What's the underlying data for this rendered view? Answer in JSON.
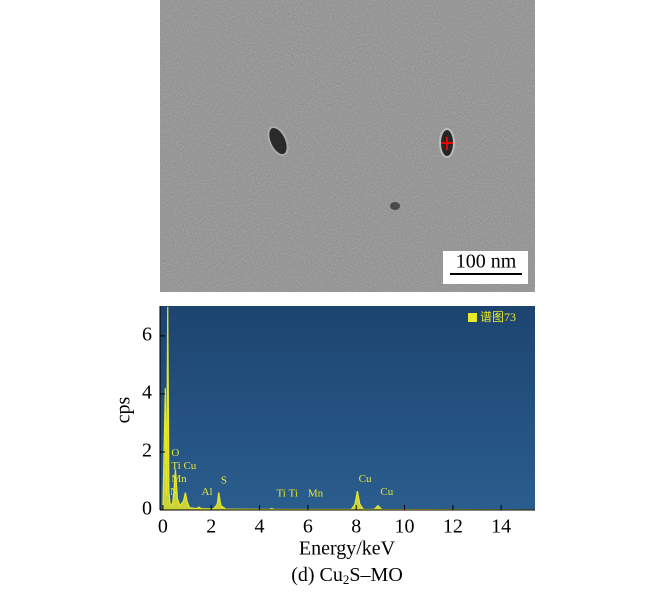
{
  "chart_data": {
    "type": "line",
    "scale_bar": "100 nm",
    "legend": "upper right",
    "x": [
      0,
      0.1,
      0.15,
      0.2,
      0.25,
      0.3,
      0.4,
      0.45,
      0.52,
      0.6,
      0.7,
      0.85,
      0.93,
      1.0,
      1.1,
      1.4,
      1.49,
      1.6,
      2.1,
      2.25,
      2.31,
      2.4,
      2.6,
      4.4,
      4.51,
      4.6,
      7.8,
      7.95,
      8.05,
      8.15,
      8.3,
      8.75,
      8.9,
      9.05,
      15.4
    ],
    "series": [
      {
        "name": "谱图73",
        "color": "#e8e82a",
        "values": [
          0,
          4.2,
          0.5,
          7,
          0.6,
          0.2,
          0.2,
          0.6,
          1.4,
          0.4,
          0.15,
          0.3,
          0.6,
          0.3,
          0.08,
          0.05,
          0.1,
          0.04,
          0.04,
          0.2,
          0.6,
          0.15,
          0.03,
          0.02,
          0.05,
          0.02,
          0.02,
          0.2,
          0.65,
          0.2,
          0.02,
          0.02,
          0.15,
          0.02,
          0
        ]
      }
    ],
    "annotations": [
      {
        "text": "O",
        "x": 0.35,
        "y": 1.95
      },
      {
        "text": "Ti",
        "x": 0.35,
        "y": 1.5
      },
      {
        "text": "Cu",
        "x": 0.85,
        "y": 1.5
      },
      {
        "text": "Mn",
        "x": 0.35,
        "y": 1.05
      },
      {
        "text": "N",
        "x": 0.3,
        "y": 0.6
      },
      {
        "text": "Al",
        "x": 1.6,
        "y": 0.6
      },
      {
        "text": "S",
        "x": 2.4,
        "y": 1.0
      },
      {
        "text": "Ti",
        "x": 4.7,
        "y": 0.55
      },
      {
        "text": "Ti",
        "x": 5.2,
        "y": 0.55
      },
      {
        "text": "Mn",
        "x": 6.0,
        "y": 0.55
      },
      {
        "text": "Cu",
        "x": 8.1,
        "y": 1.05
      },
      {
        "text": "Cu",
        "x": 9.0,
        "y": 0.6
      }
    ],
    "xlabel": "Energy/keV",
    "ylabel": "cps",
    "xlim": [
      -0.12,
      15.4
    ],
    "ylim": [
      0,
      7.03
    ],
    "xticks": [
      0,
      2,
      4,
      6,
      8,
      10,
      12,
      14
    ],
    "yticks": [
      0,
      2,
      4,
      6
    ],
    "caption": [
      "(d) Cu",
      "2",
      "S–MO"
    ]
  }
}
